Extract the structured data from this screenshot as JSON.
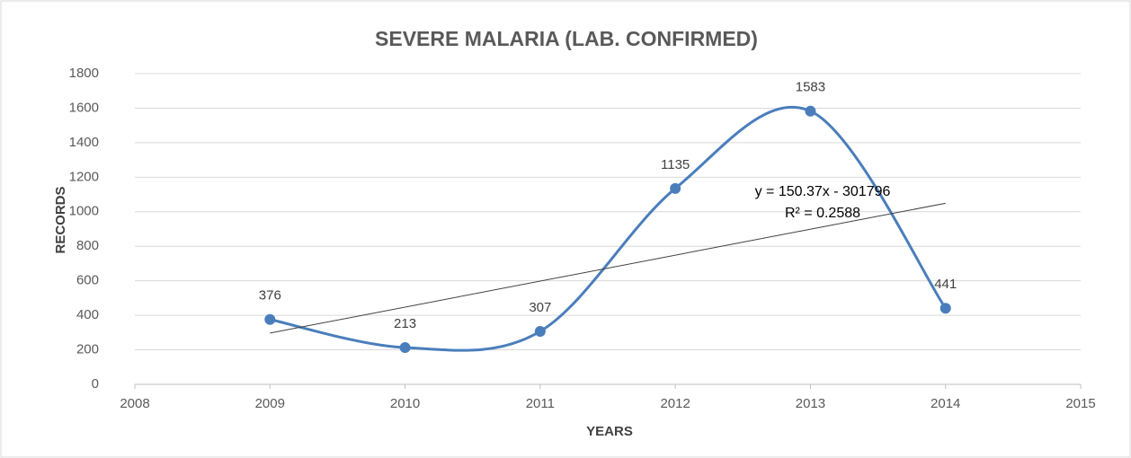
{
  "chart_data": {
    "type": "line",
    "title": "SEVERE MALARIA (LAB. CONFIRMED)",
    "x_label": "YEARS",
    "y_label": "RECORDS",
    "x": [
      2009,
      2010,
      2011,
      2012,
      2013,
      2014
    ],
    "series": [
      {
        "name": "Severe malaria",
        "color": "#4a7ebb",
        "values": [
          376,
          213,
          307,
          1135,
          1583,
          441
        ]
      }
    ],
    "xlim": [
      2008,
      2015
    ],
    "xticks": [
      2008,
      2009,
      2010,
      2011,
      2012,
      2013,
      2014,
      2015
    ],
    "ylim": [
      0,
      1800
    ],
    "yticks": [
      0,
      200,
      400,
      600,
      800,
      1000,
      1200,
      1400,
      1600,
      1800
    ],
    "grid": true,
    "smooth": true,
    "data_labels": true,
    "trendline": {
      "slope": 150.37,
      "intercept": -301796,
      "color": "#404040",
      "label": "y = 150.37x - 301796",
      "r2_label": "R² = 0.2588"
    }
  }
}
